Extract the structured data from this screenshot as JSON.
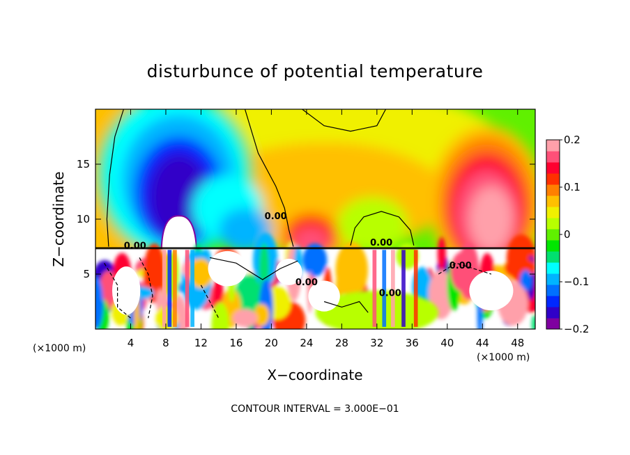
{
  "chart_data": {
    "type": "heatmap",
    "title": "disturbunce of potential temperature",
    "xlabel": "X−coordinate",
    "ylabel": "Z−coordinate",
    "x_unit": "(×1000 m)",
    "x_unit_right": "(×1000 m)",
    "xlim": [
      0,
      50
    ],
    "ylim": [
      0,
      20
    ],
    "x_ticks": [
      4,
      8,
      12,
      16,
      20,
      24,
      28,
      32,
      36,
      40,
      44,
      48
    ],
    "x_tick_labels": [
      "4",
      "8",
      "12",
      "16",
      "20",
      "24",
      "28",
      "32",
      "36",
      "40",
      "44",
      "48"
    ],
    "y_ticks": [
      5,
      10,
      15
    ],
    "y_tick_labels": [
      "5",
      "10",
      "15"
    ],
    "colorbar": {
      "range": [
        -0.2,
        0.2
      ],
      "ticks": [
        0.2,
        0.1,
        0,
        -0.1,
        -0.2
      ],
      "tick_labels": [
        "0.2",
        "0.1",
        "0",
        "−0.1",
        "−0.2"
      ],
      "colors": [
        "#7f00a0",
        "#3000c8",
        "#0028ff",
        "#0070ff",
        "#00b4ff",
        "#00ffff",
        "#00e070",
        "#00e600",
        "#60f000",
        "#b8ff00",
        "#f0f000",
        "#ffc000",
        "#ff8000",
        "#ff3000",
        "#ff0030",
        "#ff5078",
        "#ffa0aa"
      ]
    },
    "contour_labels": [
      {
        "text": "0.00",
        "x": 20.5,
        "z": 10.0
      },
      {
        "text": "0.00",
        "x": 32.5,
        "z": 7.6
      },
      {
        "text": "0.00",
        "x": 4.5,
        "z": 7.3
      },
      {
        "text": "0.00",
        "x": 24.0,
        "z": 4.0
      },
      {
        "text": "0.00",
        "x": 33.5,
        "z": 3.0
      },
      {
        "text": "0.00",
        "x": 41.5,
        "z": 5.5
      }
    ],
    "features": [
      {
        "kind": "cold-anomaly",
        "center_x": 9,
        "center_z": 13,
        "value": -0.17
      },
      {
        "kind": "warm-anomaly",
        "center_x": 44.5,
        "center_z": 12,
        "value": 0.18
      },
      {
        "kind": "warm-anomaly",
        "center_x": 25,
        "center_z": 9,
        "value": 0.14
      },
      {
        "kind": "neutral-region",
        "center_x": 30,
        "center_z": 16,
        "value": 0.03
      }
    ]
  },
  "footer": {
    "contour_interval": "CONTOUR INTERVAL = 3.000E−01"
  }
}
